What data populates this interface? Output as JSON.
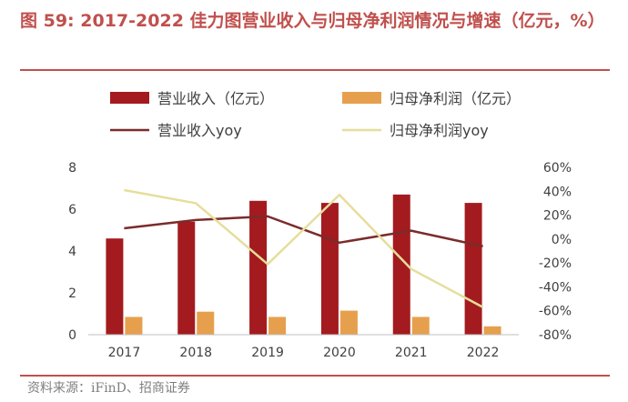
{
  "title": "图 59: 2017-2022 佳力图营业收入与归母净利润情况与增速（亿元，%）",
  "source": "资料来源：iFinD、招商证券",
  "chart_data": {
    "type": "bar",
    "categories": [
      "2017",
      "2018",
      "2019",
      "2020",
      "2021",
      "2022"
    ],
    "series": [
      {
        "name": "营业收入（亿元）",
        "kind": "bar",
        "axis": "left",
        "color": "#a31b1f",
        "values": [
          4.6,
          5.4,
          6.4,
          6.3,
          6.7,
          6.3
        ]
      },
      {
        "name": "归母净利润（亿元）",
        "kind": "bar",
        "axis": "left",
        "color": "#e6a04d",
        "values": [
          0.85,
          1.1,
          0.85,
          1.15,
          0.85,
          0.4
        ]
      },
      {
        "name": "营业收入yoy",
        "kind": "line",
        "axis": "right",
        "color": "#7b2b2b",
        "values": [
          9,
          16,
          19,
          -3,
          7,
          -6
        ]
      },
      {
        "name": "归母净利润yoy",
        "kind": "line",
        "axis": "right",
        "color": "#e6de9c",
        "values": [
          41,
          30,
          -21,
          37,
          -25,
          -57
        ]
      }
    ],
    "y_left": {
      "min": 0,
      "max": 8,
      "ticks": [
        "0",
        "2",
        "4",
        "6",
        "8"
      ]
    },
    "y_right": {
      "min": -80,
      "max": 60,
      "ticks": [
        "-80%",
        "-60%",
        "-40%",
        "-20%",
        "0%",
        "20%",
        "40%",
        "60%"
      ]
    },
    "grid": false,
    "legend_position": "top"
  }
}
